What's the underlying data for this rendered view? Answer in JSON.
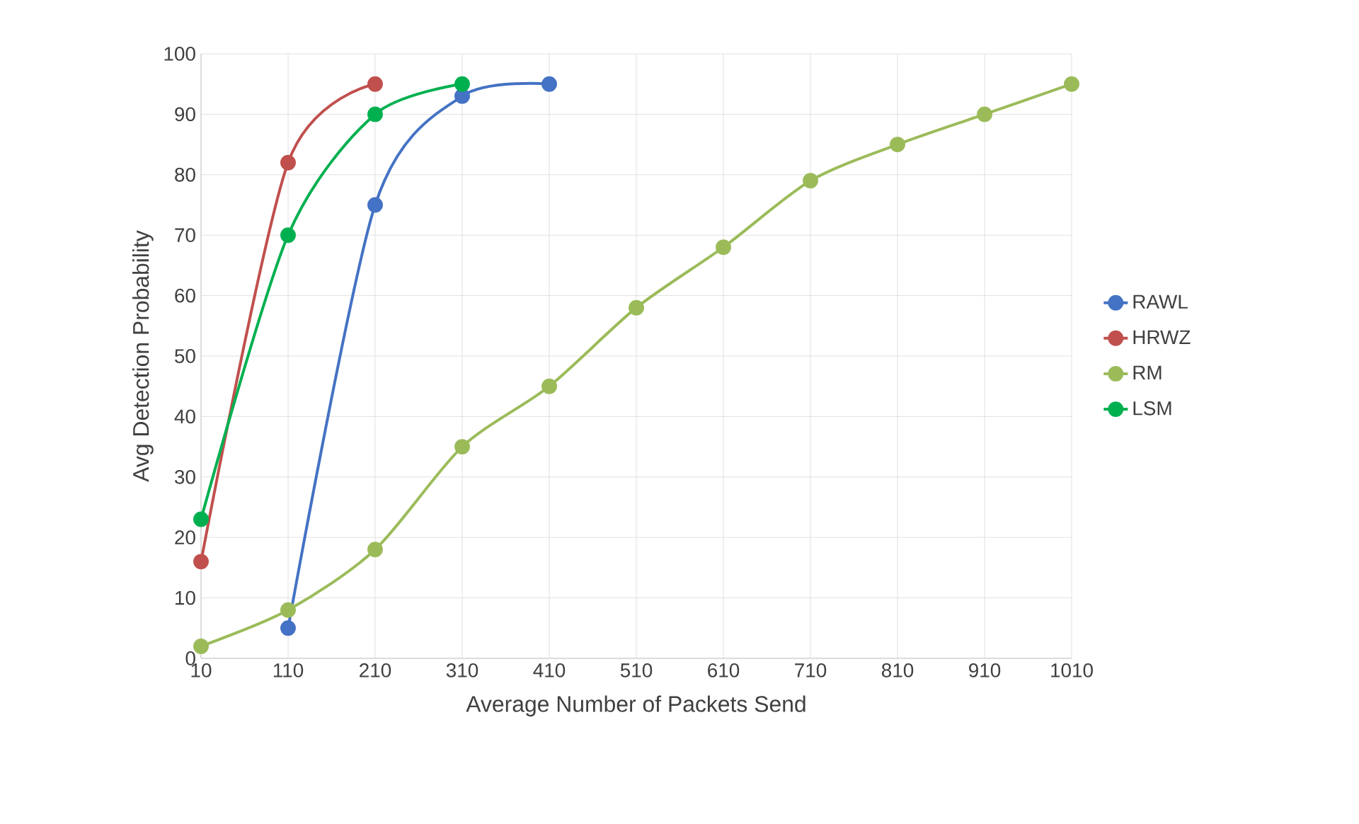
{
  "chart_data": {
    "type": "line",
    "xlabel": "Average Number of Packets Send",
    "ylabel": "Avg Detection Probability",
    "x": [
      10,
      110,
      210,
      310,
      410,
      510,
      610,
      710,
      810,
      910,
      1010
    ],
    "xlim": [
      10,
      1010
    ],
    "xticks": [
      10,
      110,
      210,
      310,
      410,
      510,
      610,
      710,
      810,
      910,
      1010
    ],
    "ylim": [
      0,
      100
    ],
    "yticks": [
      0,
      10,
      20,
      30,
      40,
      50,
      60,
      70,
      80,
      90,
      100
    ],
    "grid": true,
    "legend": "right",
    "marker": "circle",
    "line_style": "solid",
    "series": [
      {
        "name": "RAWL",
        "color": "#4472c4",
        "values": [
          null,
          5,
          75,
          93,
          95,
          null,
          null,
          null,
          null,
          null,
          null
        ]
      },
      {
        "name": "HRWZ",
        "color": "#c0504d",
        "values": [
          16,
          82,
          95,
          null,
          null,
          null,
          null,
          null,
          null,
          null,
          null
        ]
      },
      {
        "name": "RM",
        "color": "#9bbb59",
        "values": [
          2,
          8,
          18,
          35,
          45,
          58,
          68,
          79,
          85,
          90,
          95
        ]
      },
      {
        "name": "LSM",
        "color": "#00b050",
        "values": [
          23,
          70,
          90,
          95,
          null,
          null,
          null,
          null,
          null,
          null,
          null
        ]
      }
    ]
  }
}
